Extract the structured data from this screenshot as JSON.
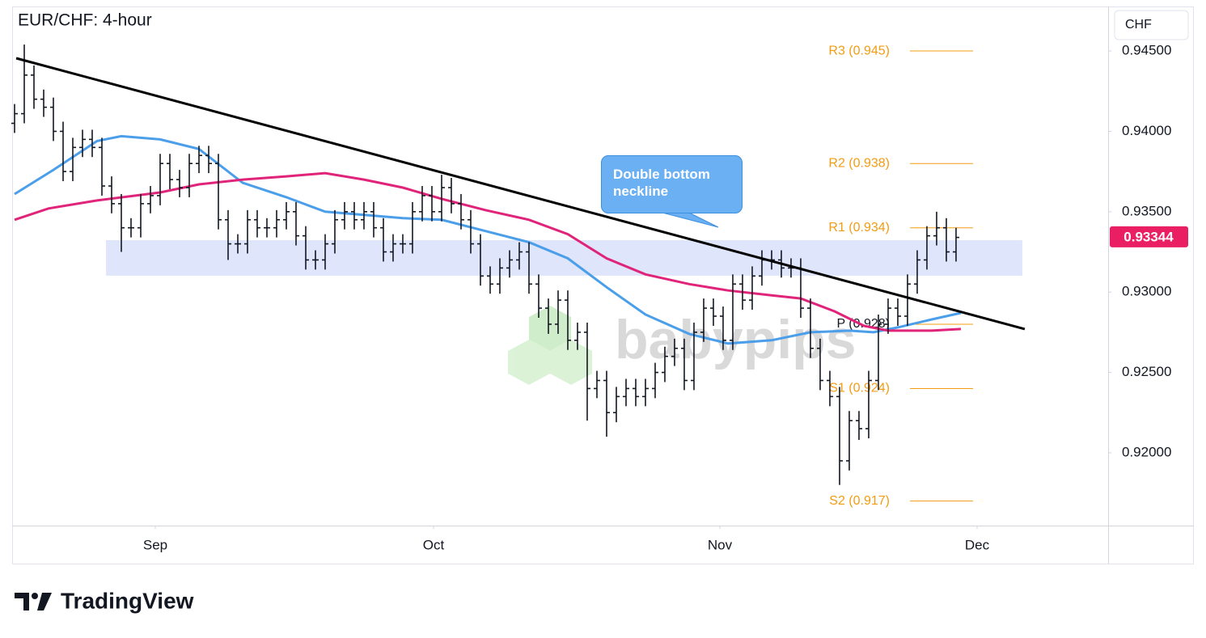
{
  "chart_data": {
    "type": "ohlc",
    "title": "EUR/CHF: 4-hour",
    "currency": "CHF",
    "color": "#131722",
    "open": [
      0.9405,
      0.9411,
      0.9435,
      0.942,
      0.9415,
      0.94,
      0.9375,
      0.939,
      0.9395,
      0.939,
      0.9366,
      0.9355,
      0.934,
      0.934,
      0.9355,
      0.936,
      0.938,
      0.937,
      0.9365,
      0.938,
      0.9385,
      0.938,
      0.9345,
      0.933,
      0.933,
      0.9345,
      0.934,
      0.934,
      0.9345,
      0.935,
      0.9335,
      0.932,
      0.932,
      0.933,
      0.9345,
      0.935,
      0.9345,
      0.935,
      0.934,
      0.9325,
      0.933,
      0.933,
      0.935,
      0.936,
      0.935,
      0.9365,
      0.9355,
      0.9345,
      0.933,
      0.931,
      0.9305,
      0.9315,
      0.932,
      0.9325,
      0.9305,
      0.929,
      0.928,
      0.9295,
      0.927,
      0.9275,
      0.924,
      0.9245,
      0.9225,
      0.9235,
      0.924,
      0.9235,
      0.924,
      0.925,
      0.926,
      0.9265,
      0.9245,
      0.9275,
      0.929,
      0.9285,
      0.927,
      0.9305,
      0.9295,
      0.931,
      0.932,
      0.932,
      0.9315,
      0.9315,
      0.929,
      0.9265,
      0.9245,
      0.9235,
      0.9195,
      0.922,
      0.9215,
      0.9245,
      0.928,
      0.929,
      0.9285,
      0.9305,
      0.932,
      0.9335,
      0.934,
      0.9325
    ],
    "high": [
      0.9417,
      0.9454,
      0.9441,
      0.9426,
      0.9421,
      0.9406,
      0.9396,
      0.9401,
      0.9401,
      0.9396,
      0.9372,
      0.9361,
      0.9346,
      0.9361,
      0.9366,
      0.9386,
      0.9386,
      0.9376,
      0.9386,
      0.9391,
      0.9391,
      0.9386,
      0.9351,
      0.9336,
      0.9351,
      0.9351,
      0.9346,
      0.9351,
      0.9356,
      0.9356,
      0.9341,
      0.9326,
      0.9336,
      0.9351,
      0.9356,
      0.9356,
      0.9356,
      0.9356,
      0.9346,
      0.9336,
      0.9336,
      0.9356,
      0.9366,
      0.9366,
      0.9373,
      0.9371,
      0.9361,
      0.9351,
      0.9336,
      0.9316,
      0.9321,
      0.9326,
      0.9331,
      0.9331,
      0.9311,
      0.9296,
      0.9301,
      0.9301,
      0.9281,
      0.9281,
      0.9251,
      0.9251,
      0.9241,
      0.9246,
      0.9246,
      0.9246,
      0.9256,
      0.9266,
      0.9271,
      0.9271,
      0.9281,
      0.9296,
      0.9296,
      0.9291,
      0.9311,
      0.9311,
      0.9316,
      0.9326,
      0.9326,
      0.9326,
      0.9321,
      0.9321,
      0.9296,
      0.9271,
      0.9251,
      0.9241,
      0.9226,
      0.9226,
      0.9251,
      0.9286,
      0.9296,
      0.9296,
      0.9311,
      0.9326,
      0.9341,
      0.935,
      0.9346,
      0.934
    ],
    "low": [
      0.9399,
      0.9405,
      0.9414,
      0.9409,
      0.9394,
      0.9369,
      0.9369,
      0.9384,
      0.9384,
      0.936,
      0.9349,
      0.9325,
      0.9334,
      0.9334,
      0.9349,
      0.9354,
      0.9364,
      0.9359,
      0.9359,
      0.9374,
      0.9374,
      0.9339,
      0.932,
      0.9324,
      0.9324,
      0.9334,
      0.9334,
      0.9334,
      0.9339,
      0.9329,
      0.9314,
      0.9314,
      0.9314,
      0.9324,
      0.9339,
      0.9339,
      0.9339,
      0.9334,
      0.9319,
      0.9319,
      0.9324,
      0.9324,
      0.9344,
      0.9344,
      0.9344,
      0.9349,
      0.9339,
      0.9324,
      0.9304,
      0.9299,
      0.9299,
      0.9309,
      0.9314,
      0.9299,
      0.9284,
      0.9274,
      0.9274,
      0.9264,
      0.9264,
      0.922,
      0.9234,
      0.921,
      0.9219,
      0.9229,
      0.9229,
      0.9229,
      0.9234,
      0.9244,
      0.9254,
      0.9239,
      0.9239,
      0.9269,
      0.9279,
      0.9264,
      0.9264,
      0.9289,
      0.9289,
      0.9304,
      0.9314,
      0.9309,
      0.9309,
      0.9284,
      0.9259,
      0.9239,
      0.9229,
      0.918,
      0.9189,
      0.9208,
      0.9209,
      0.9239,
      0.9274,
      0.9279,
      0.9279,
      0.9299,
      0.9314,
      0.9329,
      0.9319,
      0.9319
    ],
    "close": [
      0.9411,
      0.9435,
      0.942,
      0.9415,
      0.94,
      0.9375,
      0.939,
      0.9395,
      0.939,
      0.9366,
      0.9355,
      0.934,
      0.934,
      0.9355,
      0.936,
      0.938,
      0.937,
      0.9365,
      0.938,
      0.9385,
      0.938,
      0.9345,
      0.933,
      0.933,
      0.9345,
      0.934,
      0.934,
      0.9345,
      0.935,
      0.9335,
      0.932,
      0.932,
      0.933,
      0.9345,
      0.935,
      0.9345,
      0.935,
      0.934,
      0.9325,
      0.933,
      0.933,
      0.935,
      0.936,
      0.935,
      0.9365,
      0.9355,
      0.9345,
      0.933,
      0.931,
      0.9305,
      0.9315,
      0.932,
      0.9325,
      0.9305,
      0.929,
      0.928,
      0.9295,
      0.927,
      0.9275,
      0.924,
      0.9245,
      0.9225,
      0.9235,
      0.924,
      0.9235,
      0.924,
      0.925,
      0.926,
      0.9265,
      0.9245,
      0.9275,
      0.929,
      0.9285,
      0.927,
      0.9305,
      0.9295,
      0.931,
      0.932,
      0.932,
      0.9315,
      0.9315,
      0.929,
      0.9265,
      0.9245,
      0.9235,
      0.9195,
      0.922,
      0.9215,
      0.9245,
      0.928,
      0.929,
      0.9285,
      0.9305,
      0.932,
      0.9335,
      0.934,
      0.9325,
      0.9334
    ],
    "xlim": [
      -0.25,
      112.67
    ],
    "xticks": [
      {
        "value": 14.5,
        "label": "Sep"
      },
      {
        "value": 43.17,
        "label": "Oct"
      },
      {
        "value": 72.67,
        "label": "Nov"
      },
      {
        "value": 99.17,
        "label": "Dec"
      }
    ],
    "ylim": [
      0.91547,
      0.94777
    ],
    "yticks": [
      {
        "value": 0.945,
        "label": "0.94500"
      },
      {
        "value": 0.94,
        "label": "0.94000"
      },
      {
        "value": 0.935,
        "label": "0.93500"
      },
      {
        "value": 0.93,
        "label": "0.93000"
      },
      {
        "value": 0.925,
        "label": "0.92500"
      },
      {
        "value": 0.92,
        "label": "0.92000"
      }
    ],
    "last_price": 0.93344,
    "last_price_color": "#e91e63",
    "moving_averages": [
      {
        "color": "#4a9eea",
        "x": [
          0,
          4,
          8.5,
          11,
          15,
          19,
          23.5,
          28,
          32,
          36,
          40,
          44,
          48.5,
          53,
          57,
          61,
          65,
          69.5,
          73.5,
          78,
          82,
          86,
          88.5,
          91,
          94.5,
          97.5
        ],
        "values": [
          0.9361,
          0.9376,
          0.9394,
          0.9397,
          0.9395,
          0.9389,
          0.9368,
          0.9359,
          0.935,
          0.9348,
          0.9346,
          0.9345,
          0.9338,
          0.9331,
          0.9321,
          0.9303,
          0.9286,
          0.9274,
          0.9268,
          0.927,
          0.9275,
          0.9276,
          0.9275,
          0.9278,
          0.9283,
          0.9287
        ]
      },
      {
        "color": "#e0247a",
        "x": [
          0,
          3.5,
          8.5,
          15,
          19,
          23.5,
          28,
          32,
          36,
          40,
          44,
          48.5,
          53,
          57,
          61,
          65,
          69.5,
          73.5,
          78,
          81,
          84.5,
          87.5,
          90,
          94.5,
          97.5
        ],
        "values": [
          0.9345,
          0.9352,
          0.9357,
          0.9362,
          0.9367,
          0.937,
          0.9372,
          0.9374,
          0.937,
          0.9365,
          0.9358,
          0.9351,
          0.9345,
          0.9336,
          0.9321,
          0.9311,
          0.9305,
          0.9301,
          0.9298,
          0.9296,
          0.9288,
          0.9279,
          0.9276,
          0.9276,
          0.9277
        ]
      }
    ],
    "trendline": {
      "color": "#000000",
      "x": [
        0.17,
        104.08
      ],
      "values": [
        0.94455,
        0.9277
      ]
    },
    "zone": {
      "color": "#dce2fb",
      "x": [
        9.42,
        103.83
      ],
      "values": [
        0.93102,
        0.93323
      ]
    },
    "pivots": [
      {
        "value": 0.945,
        "label": "R3 (0.945)",
        "color": "#f39c12"
      },
      {
        "value": 0.938,
        "label": "R2 (0.938)",
        "color": "#f39c12"
      },
      {
        "value": 0.934,
        "label": "R1 (0.934)",
        "color": "#f39c12"
      },
      {
        "value": 0.928,
        "label": "P (0.928)",
        "color": "#131722"
      },
      {
        "value": 0.924,
        "label": "S1 (0.924)",
        "color": "#f39c12"
      },
      {
        "value": 0.917,
        "label": "S2 (0.917)",
        "color": "#f39c12"
      }
    ],
    "annotation": {
      "text": "Double bottom neckline",
      "color": "#6ab0f3"
    },
    "watermark": "babypips",
    "brand": "TradingView"
  }
}
